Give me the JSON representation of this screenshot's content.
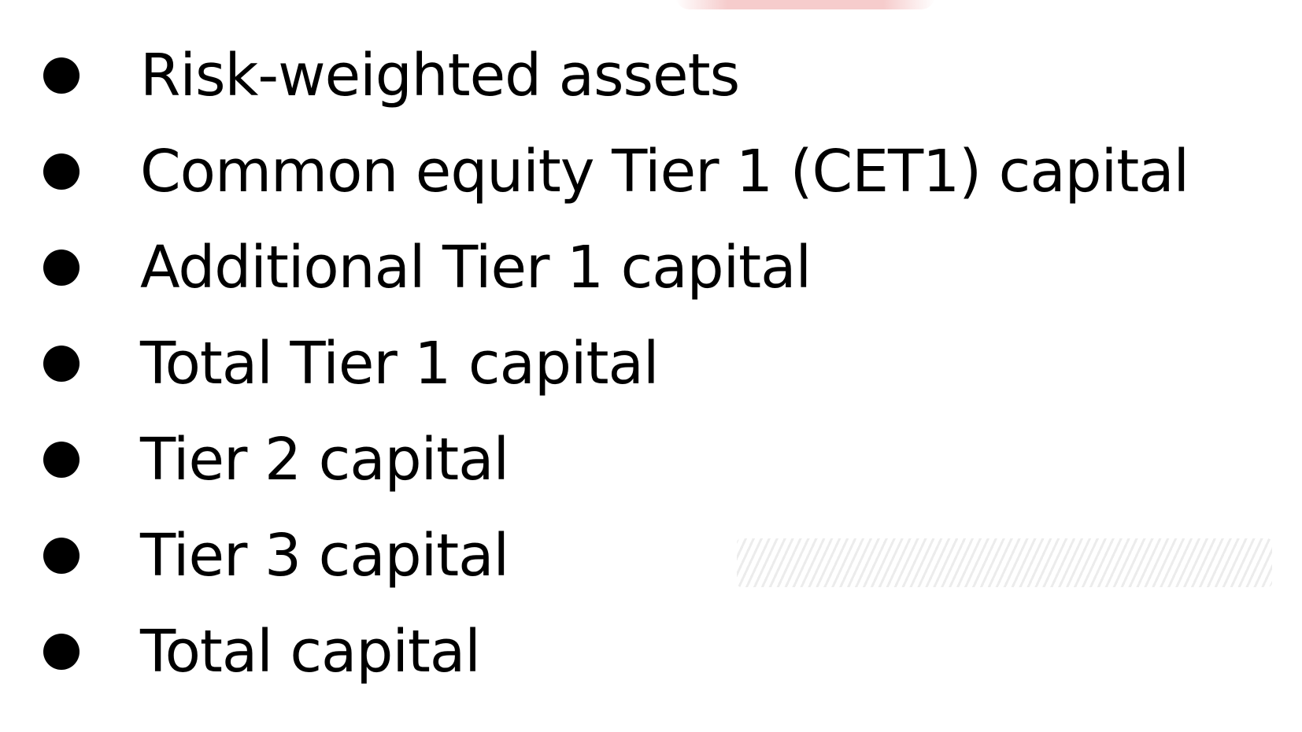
{
  "items": [
    {
      "label": "Risk-weighted assets"
    },
    {
      "label": "Common equity Tier 1 (CET1) capital"
    },
    {
      "label": "Additional Tier 1 capital"
    },
    {
      "label": "Total Tier 1 capital"
    },
    {
      "label": "Tier 2 capital"
    },
    {
      "label": "Tier 3 capital"
    },
    {
      "label": "Total capital"
    }
  ],
  "colors": {
    "background": "#ffffff",
    "text": "#000000",
    "bullet": "#000000"
  }
}
